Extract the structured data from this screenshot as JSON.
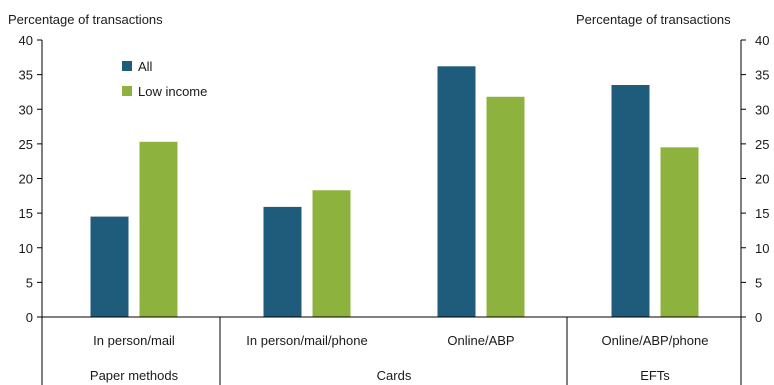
{
  "chart_data": {
    "type": "bar",
    "ylabel_left": "Percentage of transactions",
    "ylabel_right": "Percentage of transactions",
    "ylim": [
      0,
      40
    ],
    "yticks": [
      "0",
      "5",
      "10",
      "15",
      "20",
      "25",
      "30",
      "35",
      "40"
    ],
    "categories": [
      "In person/mail",
      "In person/mail/phone",
      "Online/ABP",
      "Online/ABP/phone"
    ],
    "groups": [
      {
        "label": "Paper methods",
        "categories": [
          0
        ]
      },
      {
        "label": "Cards",
        "categories": [
          1,
          2
        ]
      },
      {
        "label": "EFTs",
        "categories": [
          3
        ]
      }
    ],
    "series": [
      {
        "name": "All",
        "color": "#1f5b7a",
        "values": [
          14.5,
          15.9,
          36.2,
          33.5
        ]
      },
      {
        "name": "Low income",
        "color": "#8db33e",
        "values": [
          25.3,
          18.3,
          31.8,
          24.5
        ]
      }
    ],
    "legend": "top-left",
    "grid": false
  }
}
